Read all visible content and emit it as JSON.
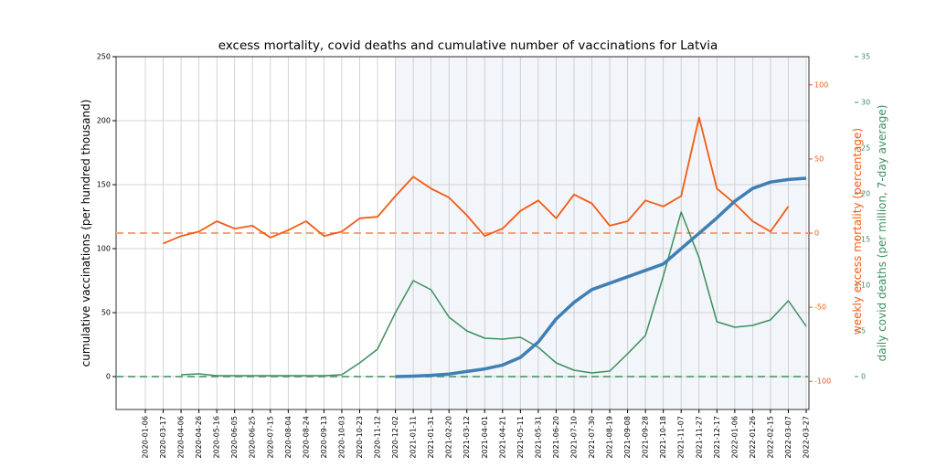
{
  "chart_data": {
    "type": "line",
    "title": "excess mortality, covid deaths and cumulative number of vaccinations for Latvia",
    "ylabel": "cumulative vaccinations (per hundred thousand)",
    "y2label": "weekly excess mortality (percentage)",
    "y3label": "daily covid deaths (per million, 7-day average)",
    "categories": [
      "2020-01-06",
      "2020-03-17",
      "2020-04-06",
      "2020-04-26",
      "2020-05-16",
      "2020-06-05",
      "2020-06-25",
      "2020-07-15",
      "2020-08-04",
      "2020-08-24",
      "2020-09-13",
      "2020-10-03",
      "2020-10-23",
      "2020-11-12",
      "2020-12-02",
      "2021-01-11",
      "2021-01-31",
      "2021-02-20",
      "2021-03-12",
      "2021-04-01",
      "2021-04-21",
      "2021-05-11",
      "2021-05-31",
      "2021-06-20",
      "2021-07-10",
      "2021-07-30",
      "2021-08-19",
      "2021-09-08",
      "2021-09-28",
      "2021-10-18",
      "2021-11-07",
      "2021-11-27",
      "2021-12-17",
      "2022-01-06",
      "2022-01-26",
      "2022-02-15",
      "2022-03-07",
      "2022-03-27"
    ],
    "ylim": [
      -25.7,
      250
    ],
    "yticks": [
      0,
      50,
      100,
      150,
      200,
      250
    ],
    "y2lim": [
      -119,
      119
    ],
    "y2ticks": [
      -100,
      -50,
      0,
      50,
      100
    ],
    "y3lim": [
      -3.6,
      35
    ],
    "y3ticks": [
      0,
      5,
      10,
      15,
      20,
      25,
      30,
      35
    ],
    "grid": true,
    "shade": {
      "from": "2020-12-02",
      "to": "2022-03-27",
      "color": "#f2f5f9"
    },
    "hlines": [
      {
        "axis": "y2",
        "value": 0,
        "color": "#f7a07a"
      },
      {
        "axis": "y3",
        "value": 0,
        "color": "#6aa882"
      }
    ],
    "series": [
      {
        "name": "excess mortality",
        "axis": "y2",
        "color": "#f55a14",
        "width": 1.8,
        "values": [
          null,
          -7,
          -2,
          1,
          8,
          3,
          5,
          -3,
          2,
          8,
          -2,
          1,
          10,
          11,
          25,
          38,
          30,
          24,
          12,
          -2,
          3,
          15,
          22,
          10,
          26,
          20,
          5,
          8,
          22,
          18,
          25,
          78,
          30,
          20,
          8,
          1,
          18,
          null
        ]
      },
      {
        "name": "covid deaths",
        "axis": "y3",
        "color": "#3d8f5e",
        "width": 1.5,
        "values": [
          null,
          null,
          0.2,
          0.3,
          0.1,
          0.1,
          0.1,
          0.1,
          0.1,
          0.1,
          0.1,
          0.2,
          1.5,
          3,
          7,
          10.5,
          9.5,
          6.5,
          5,
          4.2,
          4.1,
          4.3,
          3.2,
          1.5,
          0.7,
          0.4,
          0.6,
          2.5,
          4.5,
          11,
          18,
          13,
          6,
          5.4,
          5.6,
          6.2,
          8.3,
          5.5
        ]
      },
      {
        "name": "vaccinations",
        "axis": "y",
        "color": "#3f7fb5",
        "width": 3.5,
        "values": [
          null,
          null,
          null,
          null,
          null,
          null,
          null,
          null,
          null,
          null,
          null,
          null,
          null,
          null,
          0,
          0.4,
          1,
          2,
          4,
          6,
          9,
          15,
          27,
          45,
          58,
          68,
          73,
          78,
          83,
          88,
          100,
          112,
          124,
          137,
          147,
          152,
          154,
          155
        ]
      }
    ]
  }
}
